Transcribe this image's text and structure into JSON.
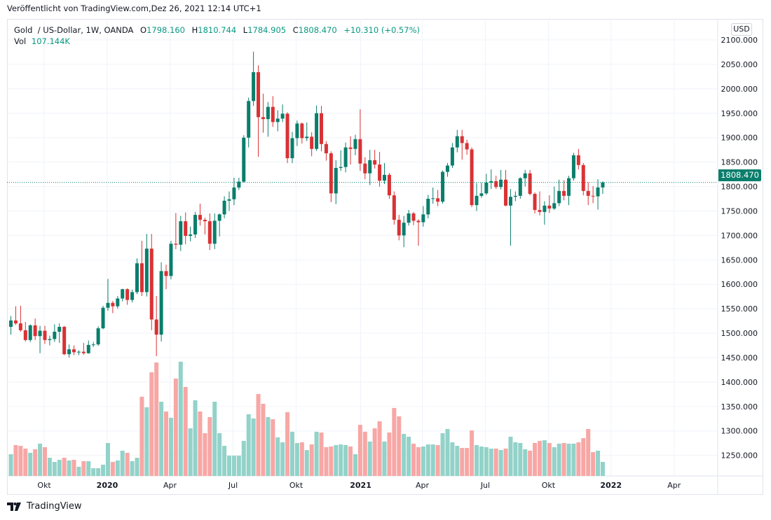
{
  "published": "Veröffentlicht von TradingView.com,Dez 26, 2021 12:14 UTC+1",
  "legend": {
    "symbol": "Gold  / US-Dollar, 1W, OANDA",
    "o_label": "O",
    "o": "1798.160",
    "h_label": "H",
    "h": "1810.744",
    "l_label": "L",
    "l": "1784.905",
    "c_label": "C",
    "c": "1808.470",
    "change": "+10.310 (+0.57%)",
    "vol_label": "Vol",
    "vol": "107.144K"
  },
  "currency_button": "USD",
  "last_price_label": "1808.470",
  "logo_text": "TradingView",
  "colors": {
    "up": "#0a7e6c",
    "down": "#d93235",
    "vol_up": "#92d2c9",
    "vol_down": "#f7a7a5",
    "accent": "#089981"
  },
  "chart_data": {
    "type": "candlestick",
    "title": "Gold / US-Dollar, 1W, OANDA",
    "interval": "1W",
    "xlim": [
      -0.8,
      145.7
    ],
    "ylim": [
      1208,
      2143
    ],
    "grid": true,
    "y_ticks": [
      "2100.000",
      "2050.000",
      "2000.000",
      "1950.000",
      "1900.000",
      "1850.000",
      "1800.000",
      "1750.000",
      "1700.000",
      "1650.000",
      "1600.000",
      "1550.000",
      "1500.000",
      "1450.000",
      "1400.000",
      "1350.000",
      "1300.000",
      "1250.000"
    ],
    "x_ticks": [
      {
        "label": "Okt",
        "week": 6.87,
        "bold": false
      },
      {
        "label": "2020",
        "week": 19.86,
        "bold": true
      },
      {
        "label": "Apr",
        "week": 32.8,
        "bold": false
      },
      {
        "label": "Jul",
        "week": 45.8,
        "bold": false
      },
      {
        "label": "Okt",
        "week": 58.8,
        "bold": false
      },
      {
        "label": "2021",
        "week": 72.1,
        "bold": true
      },
      {
        "label": "Apr",
        "week": 84.8,
        "bold": false
      },
      {
        "label": "Jul",
        "week": 97.8,
        "bold": false
      },
      {
        "label": "Okt",
        "week": 110.8,
        "bold": false
      },
      {
        "label": "2022",
        "week": 123.7,
        "bold": true
      },
      {
        "label": "Apr",
        "week": 136.7,
        "bold": false
      }
    ],
    "last_price": 1808.47,
    "candles_ohlc": [
      [
        1513,
        1535,
        1497,
        1526
      ],
      [
        1526,
        1555,
        1517,
        1520
      ],
      [
        1520,
        1556,
        1503,
        1506
      ],
      [
        1506,
        1523,
        1483,
        1486
      ],
      [
        1486,
        1518,
        1482,
        1516
      ],
      [
        1516,
        1530,
        1486,
        1494
      ],
      [
        1494,
        1515,
        1459,
        1505
      ],
      [
        1505,
        1515,
        1478,
        1486
      ],
      [
        1486,
        1495,
        1475,
        1488
      ],
      [
        1488,
        1518,
        1482,
        1503
      ],
      [
        1503,
        1520,
        1480,
        1513
      ],
      [
        1513,
        1515,
        1455,
        1457
      ],
      [
        1457,
        1477,
        1450,
        1467
      ],
      [
        1467,
        1475,
        1455,
        1461
      ],
      [
        1461,
        1465,
        1455,
        1462
      ],
      [
        1462,
        1480,
        1456,
        1459
      ],
      [
        1459,
        1485,
        1458,
        1476
      ],
      [
        1476,
        1482,
        1472,
        1477
      ],
      [
        1477,
        1514,
        1474,
        1510
      ],
      [
        1510,
        1556,
        1508,
        1552
      ],
      [
        1552,
        1611,
        1546,
        1562
      ],
      [
        1562,
        1566,
        1541,
        1555
      ],
      [
        1555,
        1576,
        1550,
        1571
      ],
      [
        1571,
        1591,
        1565,
        1590
      ],
      [
        1590,
        1592,
        1558,
        1568
      ],
      [
        1568,
        1589,
        1563,
        1584
      ],
      [
        1584,
        1653,
        1580,
        1643
      ],
      [
        1643,
        1689,
        1576,
        1584
      ],
      [
        1584,
        1703,
        1575,
        1673
      ],
      [
        1673,
        1703,
        1506,
        1528
      ],
      [
        1528,
        1576,
        1453,
        1497
      ],
      [
        1497,
        1645,
        1483,
        1627
      ],
      [
        1627,
        1640,
        1590,
        1617
      ],
      [
        1617,
        1689,
        1610,
        1683
      ],
      [
        1683,
        1746,
        1672,
        1681
      ],
      [
        1681,
        1740,
        1668,
        1729
      ],
      [
        1729,
        1747,
        1682,
        1699
      ],
      [
        1699,
        1718,
        1688,
        1702
      ],
      [
        1702,
        1748,
        1695,
        1742
      ],
      [
        1742,
        1765,
        1720,
        1732
      ],
      [
        1732,
        1736,
        1702,
        1729
      ],
      [
        1729,
        1745,
        1670,
        1683
      ],
      [
        1683,
        1745,
        1672,
        1730
      ],
      [
        1730,
        1745,
        1698,
        1743
      ],
      [
        1743,
        1780,
        1735,
        1771
      ],
      [
        1771,
        1790,
        1750,
        1774
      ],
      [
        1774,
        1818,
        1762,
        1798
      ],
      [
        1798,
        1818,
        1793,
        1810
      ],
      [
        1810,
        1905,
        1808,
        1900
      ],
      [
        1900,
        1982,
        1880,
        1975
      ],
      [
        1975,
        2076,
        1965,
        2034
      ],
      [
        2034,
        2048,
        1861,
        1942
      ],
      [
        1942,
        1990,
        1910,
        1938
      ],
      [
        1938,
        1973,
        1902,
        1963
      ],
      [
        1963,
        1985,
        1922,
        1932
      ],
      [
        1932,
        1956,
        1913,
        1939
      ],
      [
        1939,
        1968,
        1932,
        1949
      ],
      [
        1949,
        1952,
        1848,
        1858
      ],
      [
        1858,
        1912,
        1848,
        1899
      ],
      [
        1899,
        1935,
        1883,
        1929
      ],
      [
        1929,
        1931,
        1888,
        1899
      ],
      [
        1899,
        1931,
        1893,
        1902
      ],
      [
        1902,
        1911,
        1862,
        1877
      ],
      [
        1877,
        1966,
        1873,
        1950
      ],
      [
        1950,
        1965,
        1872,
        1887
      ],
      [
        1887,
        1893,
        1853,
        1868
      ],
      [
        1868,
        1872,
        1768,
        1786
      ],
      [
        1786,
        1854,
        1764,
        1838
      ],
      [
        1838,
        1874,
        1832,
        1840
      ],
      [
        1840,
        1890,
        1829,
        1880
      ],
      [
        1880,
        1903,
        1845,
        1877
      ],
      [
        1877,
        1906,
        1864,
        1897
      ],
      [
        1897,
        1958,
        1832,
        1847
      ],
      [
        1847,
        1860,
        1815,
        1827
      ],
      [
        1827,
        1875,
        1803,
        1854
      ],
      [
        1854,
        1875,
        1837,
        1845
      ],
      [
        1845,
        1871,
        1800,
        1812
      ],
      [
        1812,
        1848,
        1805,
        1824
      ],
      [
        1824,
        1828,
        1775,
        1782
      ],
      [
        1782,
        1790,
        1722,
        1732
      ],
      [
        1732,
        1742,
        1690,
        1700
      ],
      [
        1700,
        1740,
        1676,
        1726
      ],
      [
        1726,
        1752,
        1720,
        1745
      ],
      [
        1745,
        1748,
        1721,
        1730
      ],
      [
        1730,
        1733,
        1679,
        1727
      ],
      [
        1727,
        1760,
        1718,
        1743
      ],
      [
        1743,
        1783,
        1735,
        1775
      ],
      [
        1775,
        1798,
        1765,
        1776
      ],
      [
        1776,
        1793,
        1760,
        1769
      ],
      [
        1769,
        1833,
        1765,
        1830
      ],
      [
        1830,
        1848,
        1820,
        1843
      ],
      [
        1843,
        1889,
        1838,
        1880
      ],
      [
        1880,
        1916,
        1870,
        1903
      ],
      [
        1903,
        1916,
        1855,
        1889
      ],
      [
        1889,
        1896,
        1865,
        1876
      ],
      [
        1876,
        1880,
        1758,
        1762
      ],
      [
        1762,
        1807,
        1750,
        1781
      ],
      [
        1781,
        1808,
        1777,
        1786
      ],
      [
        1786,
        1826,
        1783,
        1808
      ],
      [
        1808,
        1835,
        1795,
        1811
      ],
      [
        1811,
        1822,
        1795,
        1799
      ],
      [
        1799,
        1834,
        1794,
        1814
      ],
      [
        1814,
        1834,
        1760,
        1761
      ],
      [
        1761,
        1795,
        1679,
        1779
      ],
      [
        1779,
        1790,
        1770,
        1781
      ],
      [
        1781,
        1819,
        1775,
        1817
      ],
      [
        1817,
        1834,
        1800,
        1827
      ],
      [
        1827,
        1834,
        1782,
        1785
      ],
      [
        1785,
        1788,
        1745,
        1752
      ],
      [
        1752,
        1790,
        1741,
        1748
      ],
      [
        1748,
        1770,
        1722,
        1761
      ],
      [
        1761,
        1782,
        1746,
        1755
      ],
      [
        1755,
        1800,
        1752,
        1766
      ],
      [
        1766,
        1814,
        1760,
        1791
      ],
      [
        1791,
        1813,
        1772,
        1781
      ],
      [
        1781,
        1822,
        1762,
        1817
      ],
      [
        1817,
        1869,
        1812,
        1864
      ],
      [
        1864,
        1877,
        1835,
        1844
      ],
      [
        1844,
        1848,
        1782,
        1791
      ],
      [
        1791,
        1809,
        1762,
        1781
      ],
      [
        1781,
        1801,
        1766,
        1780
      ],
      [
        1780,
        1815,
        1753,
        1798.16
      ],
      [
        1798.16,
        1810.744,
        1784.905,
        1808.47
      ]
    ],
    "volume_k": [
      166,
      236,
      230,
      209,
      177,
      204,
      247,
      220,
      139,
      107,
      123,
      139,
      118,
      123,
      70,
      113,
      113,
      59,
      59,
      86,
      252,
      107,
      118,
      193,
      177,
      113,
      139,
      606,
      525,
      793,
      868,
      568,
      493,
      445,
      745,
      874,
      681,
      364,
      579,
      493,
      327,
      450,
      568,
      327,
      230,
      155,
      155,
      155,
      268,
      472,
      440,
      627,
      552,
      450,
      434,
      295,
      257,
      488,
      338,
      252,
      257,
      198,
      241,
      338,
      332,
      220,
      225,
      236,
      241,
      236,
      225,
      166,
      391,
      338,
      263,
      364,
      418,
      263,
      332,
      520,
      456,
      322,
      300,
      247,
      220,
      225,
      241,
      241,
      236,
      327,
      359,
      257,
      230,
      214,
      214,
      348,
      236,
      225,
      220,
      209,
      209,
      198,
      209,
      300,
      257,
      252,
      204,
      193,
      252,
      268,
      273,
      252,
      220,
      247,
      252,
      247,
      247,
      257,
      289,
      359,
      182,
      193,
      107.144
    ]
  }
}
